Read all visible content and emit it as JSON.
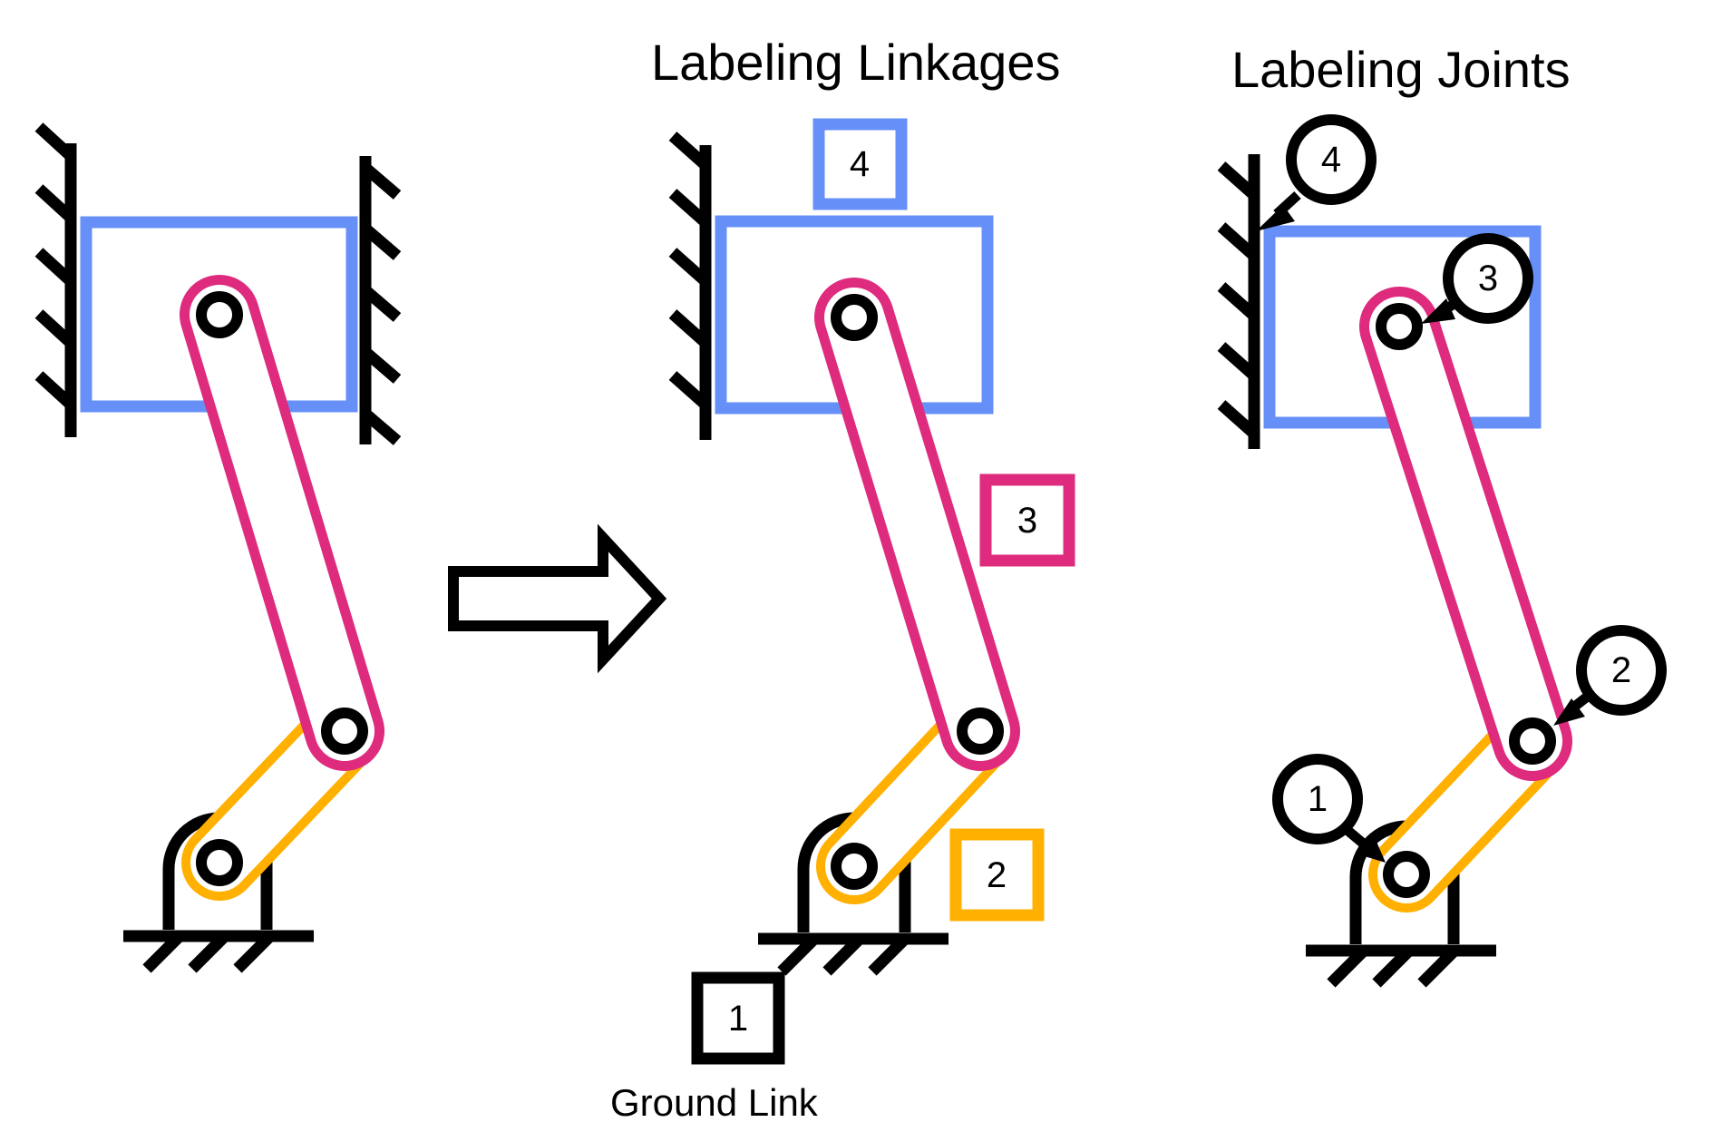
{
  "titles": {
    "linkages": "Labeling Linkages",
    "joints": "Labeling Joints"
  },
  "captions": {
    "ground_link": "Ground Link"
  },
  "link_labels": {
    "ground": "1",
    "crank": "2",
    "connecting_rod": "3",
    "slider": "4"
  },
  "joint_labels": {
    "j1": "1",
    "j2": "2",
    "j3": "3",
    "j4": "4"
  },
  "colors": {
    "slider": "#6690f8",
    "connecting_rod": "#de2b7e",
    "crank": "#ffb000",
    "ground": "#000000",
    "arrow_fill": "#ffffff"
  }
}
